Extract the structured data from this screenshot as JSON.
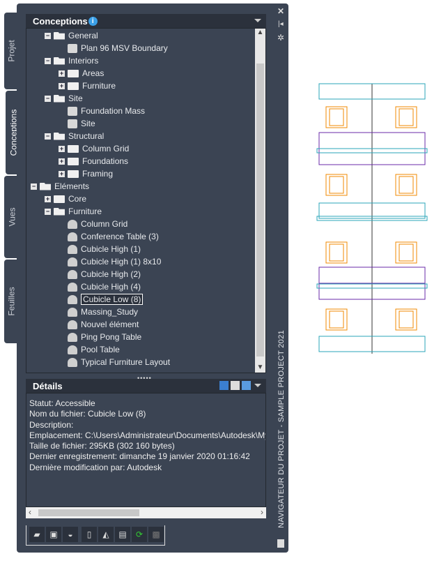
{
  "side_tabs": [
    "Projet",
    "Conceptions",
    "Vues",
    "Feuilles"
  ],
  "header": {
    "title": "Conceptions",
    "info_icon": "i"
  },
  "tree": [
    {
      "label": "General",
      "level": 1,
      "type": "folder-open",
      "toggle": "-"
    },
    {
      "label": "Plan 96 MSV Boundary",
      "level": 2,
      "type": "construct"
    },
    {
      "label": "Interiors",
      "level": 1,
      "type": "folder-open",
      "toggle": "-"
    },
    {
      "label": "Areas",
      "level": 2,
      "type": "folder",
      "toggle": "+"
    },
    {
      "label": "Furniture",
      "level": 2,
      "type": "folder",
      "toggle": "+"
    },
    {
      "label": "Site",
      "level": 1,
      "type": "folder-open",
      "toggle": "-"
    },
    {
      "label": "Foundation Mass",
      "level": 2,
      "type": "construct"
    },
    {
      "label": "Site",
      "level": 2,
      "type": "construct"
    },
    {
      "label": "Structural",
      "level": 1,
      "type": "folder-open",
      "toggle": "-"
    },
    {
      "label": "Column Grid",
      "level": 2,
      "type": "folder",
      "toggle": "+"
    },
    {
      "label": "Foundations",
      "level": 2,
      "type": "folder",
      "toggle": "+"
    },
    {
      "label": "Framing",
      "level": 2,
      "type": "folder",
      "toggle": "+"
    },
    {
      "label": "Eléments",
      "level": 0,
      "type": "folder-open",
      "toggle": "-"
    },
    {
      "label": "Core",
      "level": 1,
      "type": "folder",
      "toggle": "+"
    },
    {
      "label": "Furniture",
      "level": 1,
      "type": "folder-open",
      "toggle": "-"
    },
    {
      "label": "Column Grid",
      "level": 2,
      "type": "element"
    },
    {
      "label": "Conference Table (3)",
      "level": 2,
      "type": "element"
    },
    {
      "label": "Cubicle High (1)",
      "level": 2,
      "type": "element"
    },
    {
      "label": "Cubicle High (1) 8x10",
      "level": 2,
      "type": "element"
    },
    {
      "label": "Cubicle High (2)",
      "level": 2,
      "type": "element"
    },
    {
      "label": "Cubicle High (4)",
      "level": 2,
      "type": "element"
    },
    {
      "label": "Cubicle Low (8)",
      "level": 2,
      "type": "element",
      "selected": true
    },
    {
      "label": "Massing_Study",
      "level": 2,
      "type": "element"
    },
    {
      "label": "Nouvel élément",
      "level": 2,
      "type": "element"
    },
    {
      "label": "Ping Pong Table",
      "level": 2,
      "type": "element"
    },
    {
      "label": "Pool Table",
      "level": 2,
      "type": "element"
    },
    {
      "label": "Typical Furniture Layout",
      "level": 2,
      "type": "element"
    }
  ],
  "details": {
    "title": "Détails",
    "lines": [
      "Statut: Accessible",
      "Nom du fichier: Cubicle Low (8)",
      "Description:",
      "Emplacement: C:\\Users\\Administrateur\\Documents\\Autodesk\\My Projects",
      "Taille de fichier: 295KB (302 160 bytes)",
      "Dernier enregistrement: dimanche 19 janvier 2020  01:16:42",
      "Dernière modification par: Autodesk"
    ]
  },
  "toolbar": [
    "new-folder-icon",
    "new-construct-icon",
    "new-element-icon",
    "xref-icon",
    "edit-icon",
    "layout-icon",
    "refresh-icon",
    "xref-disabled-icon"
  ],
  "palette_title": "NAVIGATEUR DU PROJET - SAMPLE PROJECT 2021",
  "colors": {
    "panel": "#3b4453",
    "header": "#2b313c",
    "furniture": "#f08a00",
    "partition": "#6a2aa8",
    "glass": "#2aa6b8"
  }
}
